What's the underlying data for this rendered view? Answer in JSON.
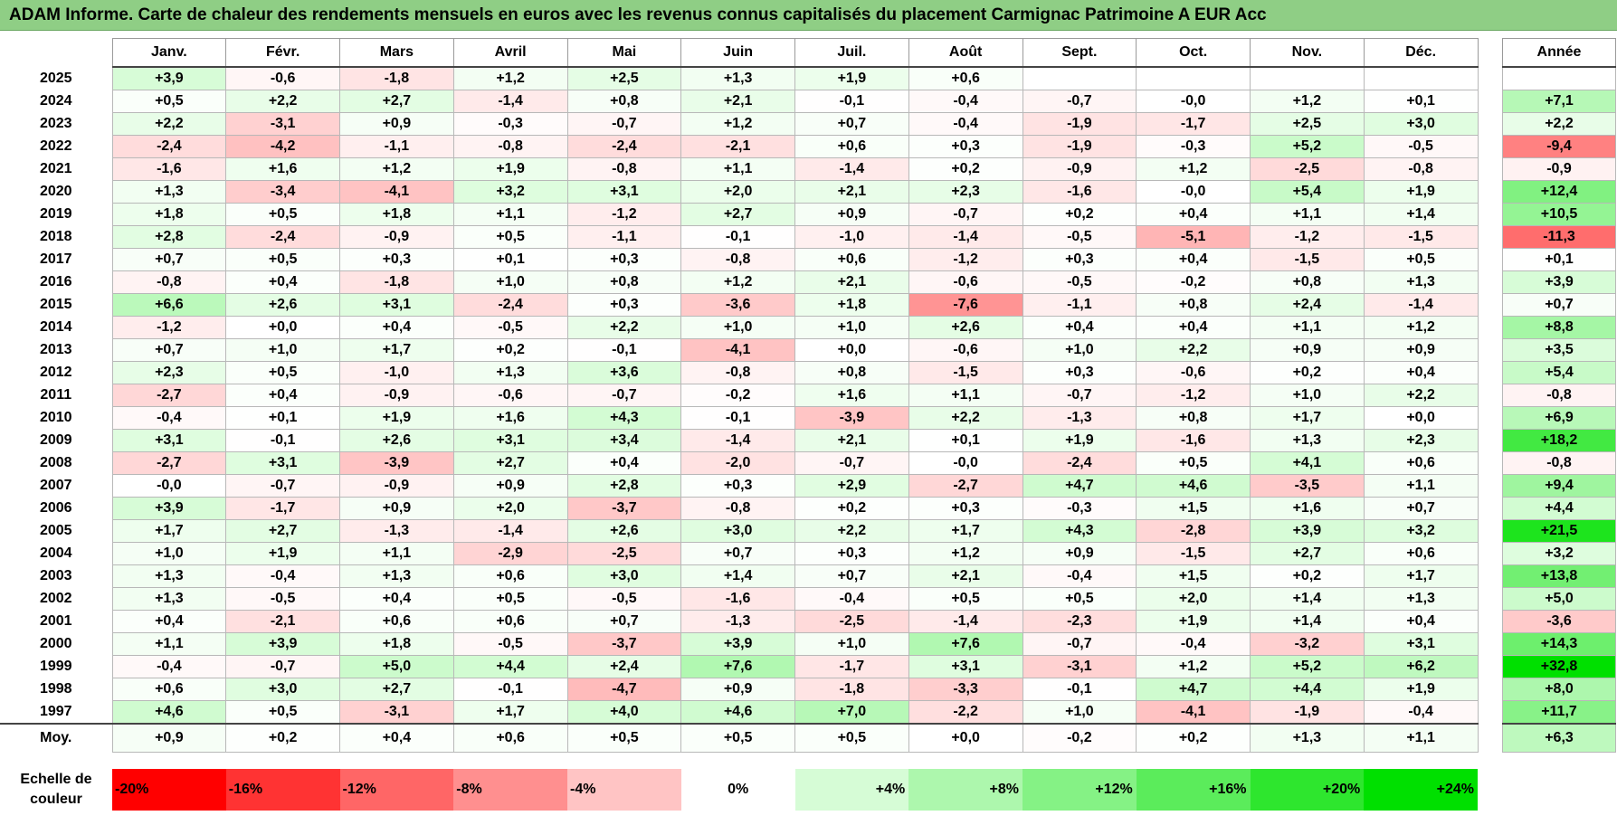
{
  "title": "ADAM Informe. Carte de chaleur des rendements mensuels en euros avec les revenus connus capitalisés du placement Carmignac Patrimoine A EUR Acc",
  "chart_data": {
    "type": "heatmap",
    "months": [
      "Janv.",
      "Févr.",
      "Mars",
      "Avril",
      "Mai",
      "Juin",
      "Juil.",
      "Août",
      "Sept.",
      "Oct.",
      "Nov.",
      "Déc."
    ],
    "annual_header": "Année",
    "average_label": "Moy.",
    "rows": [
      {
        "year": "2025",
        "values": [
          "+3,9",
          "-0,6",
          "-1,8",
          "+1,2",
          "+2,5",
          "+1,3",
          "+1,9",
          "+0,6",
          "",
          "",
          "",
          ""
        ],
        "annual": ""
      },
      {
        "year": "2024",
        "values": [
          "+0,5",
          "+2,2",
          "+2,7",
          "-1,4",
          "+0,8",
          "+2,1",
          "-0,1",
          "-0,4",
          "-0,7",
          "-0,0",
          "+1,2",
          "+0,1"
        ],
        "annual": "+7,1"
      },
      {
        "year": "2023",
        "values": [
          "+2,2",
          "-3,1",
          "+0,9",
          "-0,3",
          "-0,7",
          "+1,2",
          "+0,7",
          "-0,4",
          "-1,9",
          "-1,7",
          "+2,5",
          "+3,0"
        ],
        "annual": "+2,2"
      },
      {
        "year": "2022",
        "values": [
          "-2,4",
          "-4,2",
          "-1,1",
          "-0,8",
          "-2,4",
          "-2,1",
          "+0,6",
          "+0,3",
          "-1,9",
          "-0,3",
          "+5,2",
          "-0,5"
        ],
        "annual": "-9,4"
      },
      {
        "year": "2021",
        "values": [
          "-1,6",
          "+1,6",
          "+1,2",
          "+1,9",
          "-0,8",
          "+1,1",
          "-1,4",
          "+0,2",
          "-0,9",
          "+1,2",
          "-2,5",
          "-0,8"
        ],
        "annual": "-0,9"
      },
      {
        "year": "2020",
        "values": [
          "+1,3",
          "-3,4",
          "-4,1",
          "+3,2",
          "+3,1",
          "+2,0",
          "+2,1",
          "+2,3",
          "-1,6",
          "-0,0",
          "+5,4",
          "+1,9"
        ],
        "annual": "+12,4"
      },
      {
        "year": "2019",
        "values": [
          "+1,8",
          "+0,5",
          "+1,8",
          "+1,1",
          "-1,2",
          "+2,7",
          "+0,9",
          "-0,7",
          "+0,2",
          "+0,4",
          "+1,1",
          "+1,4"
        ],
        "annual": "+10,5"
      },
      {
        "year": "2018",
        "values": [
          "+2,8",
          "-2,4",
          "-0,9",
          "+0,5",
          "-1,1",
          "-0,1",
          "-1,0",
          "-1,4",
          "-0,5",
          "-5,1",
          "-1,2",
          "-1,5"
        ],
        "annual": "-11,3"
      },
      {
        "year": "2017",
        "values": [
          "+0,7",
          "+0,5",
          "+0,3",
          "+0,1",
          "+0,3",
          "-0,8",
          "+0,6",
          "-1,2",
          "+0,3",
          "+0,4",
          "-1,5",
          "+0,5"
        ],
        "annual": "+0,1"
      },
      {
        "year": "2016",
        "values": [
          "-0,8",
          "+0,4",
          "-1,8",
          "+1,0",
          "+0,8",
          "+1,2",
          "+2,1",
          "-0,6",
          "-0,5",
          "-0,2",
          "+0,8",
          "+1,3"
        ],
        "annual": "+3,9"
      },
      {
        "year": "2015",
        "values": [
          "+6,6",
          "+2,6",
          "+3,1",
          "-2,4",
          "+0,3",
          "-3,6",
          "+1,8",
          "-7,6",
          "-1,1",
          "+0,8",
          "+2,4",
          "-1,4"
        ],
        "annual": "+0,7"
      },
      {
        "year": "2014",
        "values": [
          "-1,2",
          "+0,0",
          "+0,4",
          "-0,5",
          "+2,2",
          "+1,0",
          "+1,0",
          "+2,6",
          "+0,4",
          "+0,4",
          "+1,1",
          "+1,2"
        ],
        "annual": "+8,8"
      },
      {
        "year": "2013",
        "values": [
          "+0,7",
          "+1,0",
          "+1,7",
          "+0,2",
          "-0,1",
          "-4,1",
          "+0,0",
          "-0,6",
          "+1,0",
          "+2,2",
          "+0,9",
          "+0,9"
        ],
        "annual": "+3,5"
      },
      {
        "year": "2012",
        "values": [
          "+2,3",
          "+0,5",
          "-1,0",
          "+1,3",
          "+3,6",
          "-0,8",
          "+0,8",
          "-1,5",
          "+0,3",
          "-0,6",
          "+0,2",
          "+0,4"
        ],
        "annual": "+5,4"
      },
      {
        "year": "2011",
        "values": [
          "-2,7",
          "+0,4",
          "-0,9",
          "-0,6",
          "-0,7",
          "-0,2",
          "+1,6",
          "+1,1",
          "-0,7",
          "-1,2",
          "+1,0",
          "+2,2"
        ],
        "annual": "-0,8"
      },
      {
        "year": "2010",
        "values": [
          "-0,4",
          "+0,1",
          "+1,9",
          "+1,6",
          "+4,3",
          "-0,1",
          "-3,9",
          "+2,2",
          "-1,3",
          "+0,8",
          "+1,7",
          "+0,0"
        ],
        "annual": "+6,9"
      },
      {
        "year": "2009",
        "values": [
          "+3,1",
          "-0,1",
          "+2,6",
          "+3,1",
          "+3,4",
          "-1,4",
          "+2,1",
          "+0,1",
          "+1,9",
          "-1,6",
          "+1,3",
          "+2,3"
        ],
        "annual": "+18,2"
      },
      {
        "year": "2008",
        "values": [
          "-2,7",
          "+3,1",
          "-3,9",
          "+2,7",
          "+0,4",
          "-2,0",
          "-0,7",
          "-0,0",
          "-2,4",
          "+0,5",
          "+4,1",
          "+0,6"
        ],
        "annual": "-0,8"
      },
      {
        "year": "2007",
        "values": [
          "-0,0",
          "-0,7",
          "-0,9",
          "+0,9",
          "+2,8",
          "+0,3",
          "+2,9",
          "-2,7",
          "+4,7",
          "+4,6",
          "-3,5",
          "+1,1"
        ],
        "annual": "+9,4"
      },
      {
        "year": "2006",
        "values": [
          "+3,9",
          "-1,7",
          "+0,9",
          "+2,0",
          "-3,7",
          "-0,8",
          "+0,2",
          "+0,3",
          "-0,3",
          "+1,5",
          "+1,6",
          "+0,7"
        ],
        "annual": "+4,4"
      },
      {
        "year": "2005",
        "values": [
          "+1,7",
          "+2,7",
          "-1,3",
          "-1,4",
          "+2,6",
          "+3,0",
          "+2,2",
          "+1,7",
          "+4,3",
          "-2,8",
          "+3,9",
          "+3,2"
        ],
        "annual": "+21,5"
      },
      {
        "year": "2004",
        "values": [
          "+1,0",
          "+1,9",
          "+1,1",
          "-2,9",
          "-2,5",
          "+0,7",
          "+0,3",
          "+1,2",
          "+0,9",
          "-1,5",
          "+2,7",
          "+0,6"
        ],
        "annual": "+3,2"
      },
      {
        "year": "2003",
        "values": [
          "+1,3",
          "-0,4",
          "+1,3",
          "+0,6",
          "+3,0",
          "+1,4",
          "+0,7",
          "+2,1",
          "-0,4",
          "+1,5",
          "+0,2",
          "+1,7"
        ],
        "annual": "+13,8"
      },
      {
        "year": "2002",
        "values": [
          "+1,3",
          "-0,5",
          "+0,4",
          "+0,5",
          "-0,5",
          "-1,6",
          "-0,4",
          "+0,5",
          "+0,5",
          "+2,0",
          "+1,4",
          "+1,3"
        ],
        "annual": "+5,0"
      },
      {
        "year": "2001",
        "values": [
          "+0,4",
          "-2,1",
          "+0,6",
          "+0,6",
          "+0,7",
          "-1,3",
          "-2,5",
          "-1,4",
          "-2,3",
          "+1,9",
          "+1,4",
          "+0,4"
        ],
        "annual": "-3,6"
      },
      {
        "year": "2000",
        "values": [
          "+1,1",
          "+3,9",
          "+1,8",
          "-0,5",
          "-3,7",
          "+3,9",
          "+1,0",
          "+7,6",
          "-0,7",
          "-0,4",
          "-3,2",
          "+3,1"
        ],
        "annual": "+14,3"
      },
      {
        "year": "1999",
        "values": [
          "-0,4",
          "-0,7",
          "+5,0",
          "+4,4",
          "+2,4",
          "+7,6",
          "-1,7",
          "+3,1",
          "-3,1",
          "+1,2",
          "+5,2",
          "+6,2"
        ],
        "annual": "+32,8"
      },
      {
        "year": "1998",
        "values": [
          "+0,6",
          "+3,0",
          "+2,7",
          "-0,1",
          "-4,7",
          "+0,9",
          "-1,8",
          "-3,3",
          "-0,1",
          "+4,7",
          "+4,4",
          "+1,9"
        ],
        "annual": "+8,0"
      },
      {
        "year": "1997",
        "values": [
          "+4,6",
          "+0,5",
          "-3,1",
          "+1,7",
          "+4,0",
          "+4,6",
          "+7,0",
          "-2,2",
          "+1,0",
          "-4,1",
          "-1,9",
          "-0,4"
        ],
        "annual": "+11,7"
      }
    ],
    "average": {
      "values": [
        "+0,9",
        "+0,2",
        "+0,4",
        "+0,6",
        "+0,5",
        "+0,5",
        "+0,5",
        "+0,0",
        "-0,2",
        "+0,2",
        "+1,3",
        "+1,1"
      ],
      "annual": "+6,3"
    },
    "color_scale": {
      "label_line1": "Echelle de",
      "label_line2": "couleur",
      "stops": [
        {
          "label": "-20%",
          "value": -20,
          "color": "#ff0000"
        },
        {
          "label": "-16%",
          "value": -16,
          "color": "#ff3333"
        },
        {
          "label": "-12%",
          "value": -12,
          "color": "#ff6666"
        },
        {
          "label": "-8%",
          "value": -8,
          "color": "#ff8f8f"
        },
        {
          "label": "-4%",
          "value": -4,
          "color": "#ffc4c4"
        },
        {
          "label": "0%",
          "value": 0,
          "color": "#ffffff"
        },
        {
          "label": "+4%",
          "value": 4,
          "color": "#d6fcd6"
        },
        {
          "label": "+8%",
          "value": 8,
          "color": "#adf7ad"
        },
        {
          "label": "+12%",
          "value": 12,
          "color": "#85f285"
        },
        {
          "label": "+16%",
          "value": 16,
          "color": "#5bec5b"
        },
        {
          "label": "+20%",
          "value": 20,
          "color": "#2ee62e"
        },
        {
          "label": "+24%",
          "value": 24,
          "color": "#00e000"
        }
      ]
    }
  }
}
